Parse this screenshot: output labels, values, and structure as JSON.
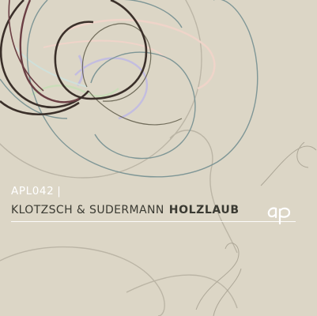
{
  "cover": {
    "catalog_number": "APL042",
    "catalog_separator": "|",
    "artist": "KLOTZSCH & SUDERMANN",
    "title": "HOLZLAUB",
    "label_logo_text": "ap"
  },
  "colors": {
    "background": "#dcd6c6",
    "dark_curve": "#3b302a",
    "teal_curve": "#7e9696",
    "pink_curve": "#efd4c9",
    "lavender_curve": "#c3bde0",
    "green_curve": "#c9ddb8",
    "grey_curve": "#b3ad9e"
  }
}
